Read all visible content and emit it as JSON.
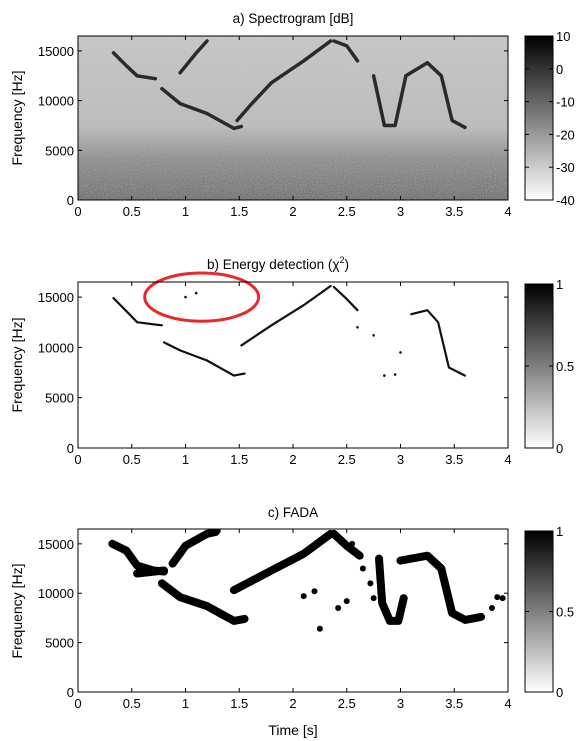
{
  "chart_data": [
    {
      "type": "heatmap",
      "title": "a) Spectrogram [dB]",
      "ylabel": "Frequency [Hz]",
      "xlim": [
        0,
        4
      ],
      "ylim": [
        0,
        16500
      ],
      "x_ticks": [
        "0",
        "0.5",
        "1",
        "1.5",
        "2",
        "2.5",
        "3",
        "3.5",
        "4"
      ],
      "y_ticks": [
        "0",
        "5000",
        "10000",
        "15000"
      ],
      "colorbar": {
        "range": [
          -40,
          10
        ],
        "ticks": [
          "10",
          "0",
          "-10",
          "-20",
          "-30",
          "-40"
        ],
        "colormap": "gray-inverted"
      },
      "background": "noise (darker at low frequencies)",
      "traces": [
        {
          "points": [
            [
              0.33,
              14800
            ],
            [
              0.45,
              13500
            ],
            [
              0.55,
              12500
            ],
            [
              0.72,
              12200
            ]
          ]
        },
        {
          "points": [
            [
              0.78,
              11200
            ],
            [
              0.95,
              9700
            ],
            [
              1.2,
              8700
            ],
            [
              1.45,
              7200
            ],
            [
              1.52,
              7400
            ]
          ]
        },
        {
          "points": [
            [
              0.95,
              12800
            ],
            [
              1.1,
              14800
            ],
            [
              1.2,
              16000
            ]
          ]
        },
        {
          "points": [
            [
              1.48,
              8000
            ],
            [
              1.6,
              9500
            ],
            [
              1.8,
              11800
            ],
            [
              2.1,
              14000
            ],
            [
              2.35,
              16000
            ]
          ]
        },
        {
          "points": [
            [
              2.38,
              16000
            ],
            [
              2.5,
              15500
            ],
            [
              2.6,
              14000
            ]
          ]
        },
        {
          "points": [
            [
              2.75,
              12500
            ],
            [
              2.85,
              7500
            ],
            [
              2.95,
              7500
            ],
            [
              3.05,
              12500
            ]
          ]
        },
        {
          "points": [
            [
              3.05,
              12500
            ],
            [
              3.25,
              13800
            ],
            [
              3.38,
              12500
            ],
            [
              3.48,
              8000
            ],
            [
              3.6,
              7300
            ]
          ]
        }
      ]
    },
    {
      "type": "heatmap",
      "title": "b) Energy detection (χ",
      "title_superscript": "2",
      "title_suffix": ")",
      "ylabel": "Frequency [Hz]",
      "xlim": [
        0,
        4
      ],
      "ylim": [
        0,
        16500
      ],
      "x_ticks": [
        "0",
        "0.5",
        "1",
        "1.5",
        "2",
        "2.5",
        "3",
        "3.5",
        "4"
      ],
      "y_ticks": [
        "0",
        "5000",
        "10000",
        "15000"
      ],
      "colorbar": {
        "range": [
          0,
          1
        ],
        "ticks": [
          "1",
          "0.5",
          "0"
        ],
        "colormap": "gray-inverted"
      },
      "annotation": {
        "shape": "ellipse",
        "color": "#e8282b",
        "center": [
          1.15,
          15000
        ],
        "radius": [
          0.53,
          2400
        ]
      },
      "traces": [
        {
          "points": [
            [
              0.33,
              14900
            ],
            [
              0.45,
              13600
            ],
            [
              0.55,
              12500
            ],
            [
              0.7,
              12300
            ],
            [
              0.78,
              12200
            ]
          ]
        },
        {
          "points": [
            [
              0.8,
              10500
            ],
            [
              0.95,
              9700
            ],
            [
              1.2,
              8700
            ],
            [
              1.45,
              7200
            ],
            [
              1.55,
              7400
            ]
          ]
        },
        {
          "points": [
            [
              1.52,
              10200
            ],
            [
              1.8,
              12200
            ],
            [
              2.1,
              14200
            ],
            [
              2.35,
              16100
            ]
          ]
        },
        {
          "points": [
            [
              2.38,
              16000
            ],
            [
              2.5,
              14800
            ],
            [
              2.6,
              13700
            ]
          ]
        },
        {
          "points": [
            [
              3.1,
              13300
            ],
            [
              3.25,
              13700
            ],
            [
              3.35,
              12500
            ],
            [
              3.45,
              8000
            ],
            [
              3.6,
              7200
            ]
          ]
        }
      ],
      "dots": [
        [
          2.6,
          12000
        ],
        [
          2.75,
          11200
        ],
        [
          2.85,
          7200
        ],
        [
          2.95,
          7300
        ],
        [
          3.0,
          9500
        ],
        [
          1.0,
          15000
        ],
        [
          1.1,
          15400
        ]
      ]
    },
    {
      "type": "heatmap",
      "title": "c) FADA",
      "xlabel": "Time [s]",
      "ylabel": "Frequency [Hz]",
      "xlim": [
        0,
        4
      ],
      "ylim": [
        0,
        16500
      ],
      "x_ticks": [
        "0",
        "0.5",
        "1",
        "1.5",
        "2",
        "2.5",
        "3",
        "3.5",
        "4"
      ],
      "y_ticks": [
        "0",
        "5000",
        "10000",
        "15000"
      ],
      "colorbar": {
        "range": [
          0,
          1
        ],
        "ticks": [
          "1",
          "0.5",
          "0"
        ],
        "colormap": "gray-inverted"
      },
      "traces": [
        {
          "points": [
            [
              0.32,
              15000
            ],
            [
              0.45,
              14300
            ],
            [
              0.55,
              12800
            ],
            [
              0.7,
              12300
            ],
            [
              0.8,
              12200
            ]
          ]
        },
        {
          "points": [
            [
              0.55,
              12000
            ],
            [
              0.8,
              12300
            ]
          ]
        },
        {
          "points": [
            [
              0.78,
              11000
            ],
            [
              0.95,
              9600
            ],
            [
              1.2,
              8700
            ],
            [
              1.45,
              7200
            ],
            [
              1.55,
              7400
            ]
          ]
        },
        {
          "points": [
            [
              0.88,
              13000
            ],
            [
              1.0,
              14800
            ],
            [
              1.2,
              16000
            ],
            [
              1.28,
              16200
            ]
          ]
        },
        {
          "points": [
            [
              1.45,
              10300
            ],
            [
              1.8,
              12300
            ],
            [
              2.1,
              14000
            ],
            [
              2.35,
              16000
            ]
          ]
        },
        {
          "points": [
            [
              2.38,
              16000
            ],
            [
              2.5,
              14800
            ],
            [
              2.62,
              13800
            ]
          ]
        },
        {
          "points": [
            [
              2.8,
              13500
            ],
            [
              2.83,
              9000
            ],
            [
              2.9,
              7200
            ],
            [
              2.98,
              7200
            ],
            [
              3.03,
              9500
            ]
          ]
        },
        {
          "points": [
            [
              3.0,
              13300
            ],
            [
              3.25,
              13800
            ],
            [
              3.38,
              12500
            ],
            [
              3.48,
              8000
            ],
            [
              3.6,
              7300
            ],
            [
              3.75,
              7600
            ]
          ]
        }
      ],
      "dots": [
        [
          2.1,
          9700
        ],
        [
          2.2,
          10200
        ],
        [
          2.42,
          8500
        ],
        [
          2.5,
          9200
        ],
        [
          2.65,
          12500
        ],
        [
          2.72,
          11000
        ],
        [
          2.75,
          9500
        ],
        [
          2.25,
          6400
        ],
        [
          3.85,
          8500
        ],
        [
          3.9,
          9600
        ],
        [
          3.95,
          9500
        ],
        [
          1.3,
          16300
        ],
        [
          2.55,
          15000
        ]
      ]
    }
  ]
}
